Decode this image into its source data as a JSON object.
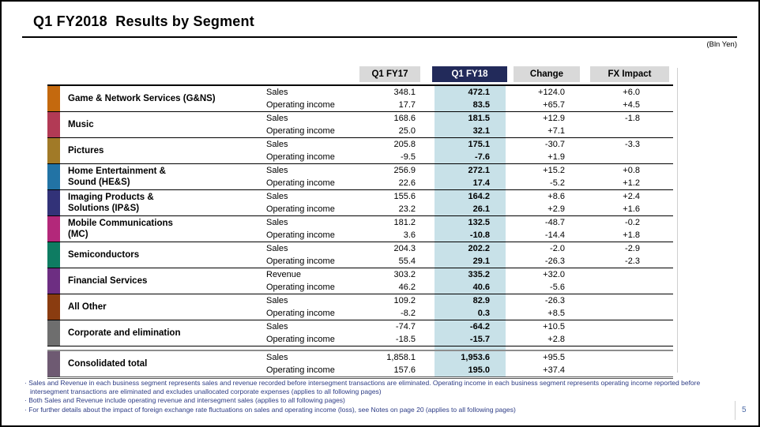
{
  "slide": {
    "title": "Q1 FY2018  Results by Segment",
    "unit_label": "(Bln Yen)",
    "page_number": "5"
  },
  "table": {
    "columns": [
      "Q1 FY17",
      "Q1 FY18",
      "Change",
      "FX Impact"
    ],
    "highlight_column": "Q1 FY18",
    "colors": {
      "header_bg": "#d9d9d9",
      "header_highlight_bg": "#222a5a",
      "highlight_band": "#c8e1e8"
    },
    "segments": [
      {
        "name": "Game & Network Services (G&NS)",
        "color": "#c4690e",
        "rows": [
          {
            "label": "Sales",
            "fy17": "348.1",
            "fy18": "472.1",
            "change": "+124.0",
            "fx": "+6.0"
          },
          {
            "label": "Operating income",
            "fy17": "17.7",
            "fy18": "83.5",
            "change": "+65.7",
            "fx": "+4.5"
          }
        ]
      },
      {
        "name": "Music",
        "color": "#b23a55",
        "rows": [
          {
            "label": "Sales",
            "fy17": "168.6",
            "fy18": "181.5",
            "change": "+12.9",
            "fx": "-1.8"
          },
          {
            "label": "Operating income",
            "fy17": "25.0",
            "fy18": "32.1",
            "change": "+7.1",
            "fx": ""
          }
        ]
      },
      {
        "name": "Pictures",
        "color": "#a17a27",
        "rows": [
          {
            "label": "Sales",
            "fy17": "205.8",
            "fy18": "175.1",
            "change": "-30.7",
            "fx": "-3.3"
          },
          {
            "label": "Operating income",
            "fy17": "-9.5",
            "fy18": "-7.6",
            "change": "+1.9",
            "fx": ""
          }
        ]
      },
      {
        "name": "Home Entertainment &\nSound (HE&S)",
        "color": "#2273a5",
        "rows": [
          {
            "label": "Sales",
            "fy17": "256.9",
            "fy18": "272.1",
            "change": "+15.2",
            "fx": "+0.8"
          },
          {
            "label": "Operating income",
            "fy17": "22.6",
            "fy18": "17.4",
            "change": "-5.2",
            "fx": "+1.2"
          }
        ]
      },
      {
        "name": "Imaging Products &\nSolutions (IP&S)",
        "color": "#323278",
        "rows": [
          {
            "label": "Sales",
            "fy17": "155.6",
            "fy18": "164.2",
            "change": "+8.6",
            "fx": "+2.4"
          },
          {
            "label": "Operating income",
            "fy17": "23.2",
            "fy18": "26.1",
            "change": "+2.9",
            "fx": "+1.6"
          }
        ]
      },
      {
        "name": "Mobile Communications\n(MC)",
        "color": "#b3287a",
        "rows": [
          {
            "label": "Sales",
            "fy17": "181.2",
            "fy18": "132.5",
            "change": "-48.7",
            "fx": "-0.2"
          },
          {
            "label": "Operating income",
            "fy17": "3.6",
            "fy18": "-10.8",
            "change": "-14.4",
            "fx": "+1.8"
          }
        ]
      },
      {
        "name": "Semiconductors",
        "color": "#0e7c62",
        "rows": [
          {
            "label": "Sales",
            "fy17": "204.3",
            "fy18": "202.2",
            "change": "-2.0",
            "fx": "-2.9"
          },
          {
            "label": "Operating income",
            "fy17": "55.4",
            "fy18": "29.1",
            "change": "-26.3",
            "fx": "-2.3"
          }
        ]
      },
      {
        "name": "Financial Services",
        "color": "#6d2e82",
        "rows": [
          {
            "label": "Revenue",
            "fy17": "303.2",
            "fy18": "335.2",
            "change": "+32.0",
            "fx": ""
          },
          {
            "label": "Operating income",
            "fy17": "46.2",
            "fy18": "40.6",
            "change": "-5.6",
            "fx": ""
          }
        ]
      },
      {
        "name": "All Other",
        "color": "#8a3c10",
        "rows": [
          {
            "label": "Sales",
            "fy17": "109.2",
            "fy18": "82.9",
            "change": "-26.3",
            "fx": ""
          },
          {
            "label": "Operating income",
            "fy17": "-8.2",
            "fy18": "0.3",
            "change": "+8.5",
            "fx": ""
          }
        ]
      },
      {
        "name": "Corporate and elimination",
        "color": "#6e6e6e",
        "rows": [
          {
            "label": "Sales",
            "fy17": "-74.7",
            "fy18": "-64.2",
            "change": "+10.5",
            "fx": ""
          },
          {
            "label": "Operating income",
            "fy17": "-18.5",
            "fy18": "-15.7",
            "change": "+2.8",
            "fx": ""
          }
        ]
      }
    ],
    "total": {
      "name": "Consolidated total",
      "color": "#6e5a72",
      "rows": [
        {
          "label": "Sales",
          "fy17": "1,858.1",
          "fy18": "1,953.6",
          "change": "+95.5",
          "fx": ""
        },
        {
          "label": "Operating income",
          "fy17": "157.6",
          "fy18": "195.0",
          "change": "+37.4",
          "fx": ""
        }
      ]
    }
  },
  "footnotes": [
    "· Sales and Revenue in each business segment represents sales and revenue recorded before intersegment transactions are eliminated. Operating income in each business segment represents operating income reported before intersegment transactions are eliminated and excludes unallocated corporate expenses (applies to all following pages)",
    "· Both Sales and Revenue include operating revenue and intersegment sales (applies to all following pages)",
    "· For further details about the impact of foreign exchange rate fluctuations on sales and operating income (loss), see Notes on page 20 (applies to all following pages)"
  ]
}
